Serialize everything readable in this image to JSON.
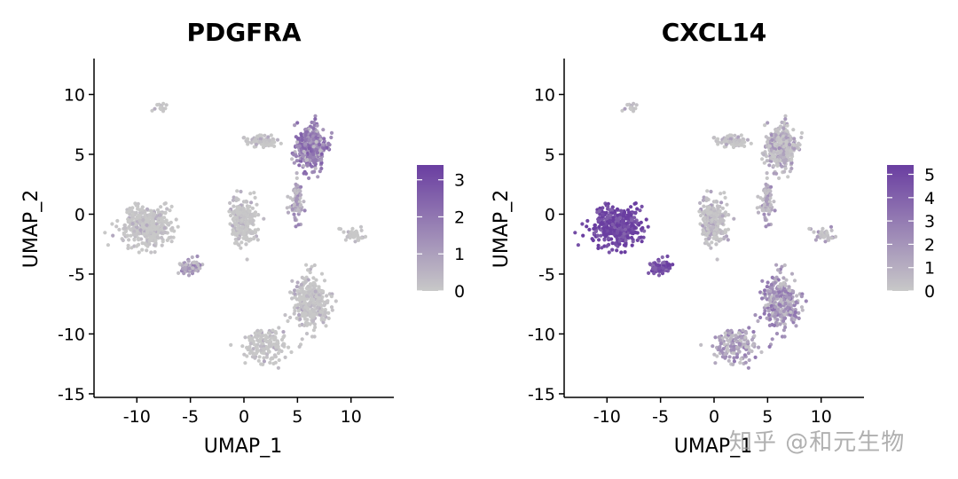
{
  "chart_data": [
    {
      "type": "scatter",
      "title": "PDGFRA",
      "xlabel": "UMAP_1",
      "ylabel": "UMAP_2",
      "xlim": [
        -14,
        14
      ],
      "ylim": [
        -15.3,
        13
      ],
      "xticks": [
        "-10",
        "-5",
        "0",
        "5",
        "10"
      ],
      "yticks": [
        "-15",
        "-10",
        "-5",
        "0",
        "5",
        "10"
      ],
      "colorbar": {
        "min": 0,
        "max": 3.4,
        "ticks": [
          "0",
          "1",
          "2",
          "3"
        ],
        "low_color": "#c8c8c8",
        "high_color": "#6a3ea1"
      },
      "clusters": [
        {
          "name": "top-right",
          "x": 6.2,
          "y": 5.6,
          "sx": 1.1,
          "sy": 1.5,
          "n": 420,
          "expr": 0.55
        },
        {
          "name": "top-band",
          "x": 1.6,
          "y": 6.1,
          "sx": 1.2,
          "sy": 0.35,
          "n": 90,
          "expr": 0.08
        },
        {
          "name": "stem",
          "x": 5.0,
          "y": 1.0,
          "sx": 0.5,
          "sy": 1.5,
          "n": 90,
          "expr": 0.3
        },
        {
          "name": "left-cluster",
          "x": -9.0,
          "y": -1.0,
          "sx": 1.9,
          "sy": 1.4,
          "n": 420,
          "expr": 0.02
        },
        {
          "name": "left-sub",
          "x": -5.0,
          "y": -4.4,
          "sx": 0.8,
          "sy": 0.5,
          "n": 80,
          "expr": 0.35
        },
        {
          "name": "center",
          "x": -0.1,
          "y": -0.6,
          "sx": 1.0,
          "sy": 1.6,
          "n": 260,
          "expr": 0.03
        },
        {
          "name": "right-small",
          "x": 10.5,
          "y": -1.8,
          "sx": 0.9,
          "sy": 0.4,
          "n": 45,
          "expr": 0.02
        },
        {
          "name": "lower-arm",
          "x": 6.2,
          "y": -7.4,
          "sx": 1.4,
          "sy": 1.7,
          "n": 320,
          "expr": 0.05
        },
        {
          "name": "bottom-arm",
          "x": 2.0,
          "y": -11.0,
          "sx": 1.8,
          "sy": 1.2,
          "n": 160,
          "expr": 0.02
        },
        {
          "name": "top-left-small",
          "x": -8.0,
          "y": 9.0,
          "sx": 0.6,
          "sy": 0.3,
          "n": 14,
          "expr": 0.0
        }
      ]
    },
    {
      "type": "scatter",
      "title": "CXCL14",
      "xlabel": "UMAP_1",
      "ylabel": "UMAP_2",
      "xlim": [
        -14,
        14
      ],
      "ylim": [
        -15.3,
        13
      ],
      "xticks": [
        "-10",
        "-5",
        "0",
        "5",
        "10"
      ],
      "yticks": [
        "-15",
        "-10",
        "-5",
        "0",
        "5",
        "10"
      ],
      "colorbar": {
        "min": 0,
        "max": 5.4,
        "ticks": [
          "0",
          "1",
          "2",
          "3",
          "4",
          "5"
        ],
        "low_color": "#c8c8c8",
        "high_color": "#6a3ea1"
      },
      "clusters": [
        {
          "name": "top-right",
          "x": 6.2,
          "y": 5.6,
          "sx": 1.1,
          "sy": 1.5,
          "n": 420,
          "expr": 0.2
        },
        {
          "name": "top-band",
          "x": 1.6,
          "y": 6.1,
          "sx": 1.2,
          "sy": 0.35,
          "n": 90,
          "expr": 0.12
        },
        {
          "name": "stem",
          "x": 5.0,
          "y": 1.0,
          "sx": 0.5,
          "sy": 1.5,
          "n": 90,
          "expr": 0.25
        },
        {
          "name": "left-cluster",
          "x": -9.0,
          "y": -1.0,
          "sx": 1.9,
          "sy": 1.4,
          "n": 420,
          "expr": 0.95
        },
        {
          "name": "left-sub",
          "x": -5.0,
          "y": -4.4,
          "sx": 0.8,
          "sy": 0.5,
          "n": 80,
          "expr": 0.85
        },
        {
          "name": "center",
          "x": -0.1,
          "y": -0.6,
          "sx": 1.0,
          "sy": 1.6,
          "n": 260,
          "expr": 0.12
        },
        {
          "name": "right-small",
          "x": 10.5,
          "y": -1.8,
          "sx": 0.9,
          "sy": 0.4,
          "n": 45,
          "expr": 0.25
        },
        {
          "name": "lower-arm",
          "x": 6.2,
          "y": -7.4,
          "sx": 1.4,
          "sy": 1.7,
          "n": 320,
          "expr": 0.4
        },
        {
          "name": "bottom-arm",
          "x": 2.0,
          "y": -11.0,
          "sx": 1.8,
          "sy": 1.2,
          "n": 160,
          "expr": 0.35
        },
        {
          "name": "top-left-small",
          "x": -8.0,
          "y": 9.0,
          "sx": 0.6,
          "sy": 0.3,
          "n": 14,
          "expr": 0.1
        }
      ]
    }
  ],
  "watermark": "知乎 @和元生物",
  "colors": {
    "point_low": "#c8c8c8",
    "point_high": "#6a3ea1",
    "axis": "#000000"
  }
}
